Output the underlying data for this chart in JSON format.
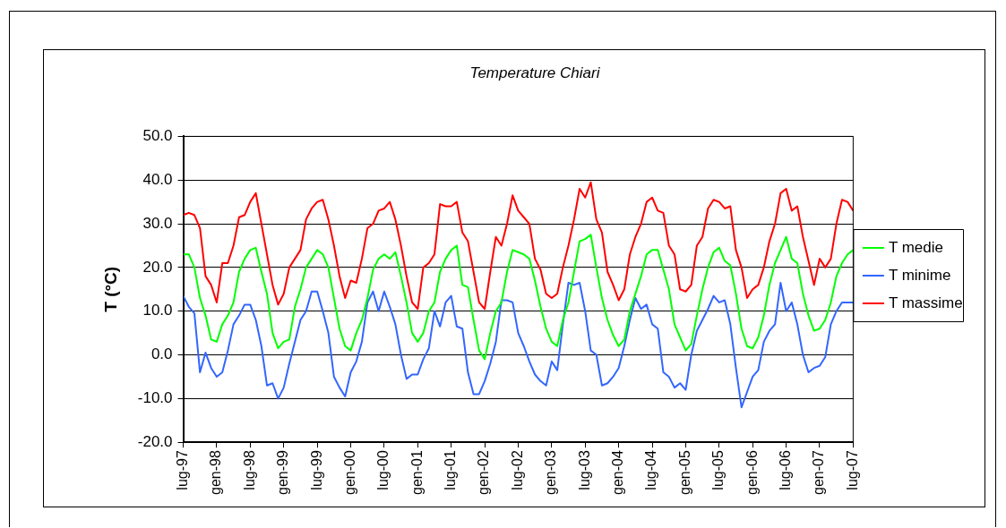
{
  "chart_data": {
    "type": "line",
    "title": "Temperature Chiari",
    "ylabel": "T (°C)",
    "categories": [
      "lug-97",
      null,
      null,
      null,
      null,
      null,
      "gen-98",
      null,
      null,
      null,
      null,
      null,
      "lug-98",
      null,
      null,
      null,
      null,
      null,
      "gen-99",
      null,
      null,
      null,
      null,
      null,
      "lug-99",
      null,
      null,
      null,
      null,
      null,
      "gen-00",
      null,
      null,
      null,
      null,
      null,
      "lug-00",
      null,
      null,
      null,
      null,
      null,
      "gen-01",
      null,
      null,
      null,
      null,
      null,
      "lug-01",
      null,
      null,
      null,
      null,
      null,
      "gen-02",
      null,
      null,
      null,
      null,
      null,
      "lug-02",
      null,
      null,
      null,
      null,
      null,
      "gen-03",
      null,
      null,
      null,
      null,
      null,
      "lug-03",
      null,
      null,
      null,
      null,
      null,
      "gen-04",
      null,
      null,
      null,
      null,
      null,
      "lug-04",
      null,
      null,
      null,
      null,
      null,
      "gen-05",
      null,
      null,
      null,
      null,
      null,
      "lug-05",
      null,
      null,
      null,
      null,
      null,
      "gen-06",
      null,
      null,
      null,
      null,
      null,
      "lug-06",
      null,
      null,
      null,
      null,
      null,
      "gen-07",
      null,
      null,
      null,
      null,
      null,
      "lug-07"
    ],
    "series": [
      {
        "name": "T medie",
        "color": "#00ff00",
        "values": [
          23,
          23,
          20,
          13,
          9,
          3.5,
          3,
          7,
          9,
          12,
          19,
          22,
          24,
          24.5,
          19,
          14,
          5,
          1.5,
          3,
          3.5,
          11,
          15,
          20,
          22,
          24,
          23,
          20,
          13,
          6,
          2,
          1,
          5,
          8,
          13,
          19.5,
          22,
          23,
          22,
          23.5,
          18,
          12,
          5,
          3,
          5,
          10,
          12,
          19,
          22,
          24,
          25,
          16,
          15.5,
          8,
          1,
          -1,
          5,
          10,
          12,
          19,
          24,
          23.5,
          23,
          22,
          17,
          11,
          6,
          3,
          2,
          8,
          12,
          19,
          26,
          26.5,
          27.5,
          20,
          13,
          8,
          4.5,
          2,
          3.5,
          10,
          14,
          18,
          23,
          24,
          24,
          19.5,
          15,
          7,
          4,
          1,
          2.5,
          9,
          15,
          20,
          23.5,
          24.5,
          21.5,
          20.5,
          14,
          6,
          2,
          1.5,
          4,
          9,
          16,
          21,
          24,
          27,
          22,
          21,
          14,
          9,
          5.5,
          6,
          8,
          12,
          18,
          21,
          23,
          24
        ]
      },
      {
        "name": "T minime",
        "color": "#3366ff",
        "values": [
          13.5,
          11,
          9.5,
          -4,
          0.5,
          -3,
          -5,
          -4,
          1,
          7,
          9,
          11.5,
          11.5,
          8,
          2,
          -7,
          -6.5,
          -10,
          -7.5,
          -2,
          3,
          8,
          10,
          14.5,
          14.5,
          10,
          5,
          -5,
          -7.5,
          -9.5,
          -4,
          -1.5,
          3,
          12,
          14.5,
          10,
          14.5,
          11,
          7,
          0,
          -5.5,
          -4.5,
          -4.5,
          -1,
          1.5,
          10,
          6.5,
          12,
          13.5,
          6.5,
          6,
          -4,
          -9,
          -9,
          -6,
          -2,
          3,
          12.5,
          12.5,
          12,
          5,
          2,
          -1.5,
          -4.5,
          -6,
          -7,
          -1.5,
          -3.5,
          7,
          16.5,
          16,
          16.5,
          10,
          1,
          0,
          -7,
          -6.5,
          -5,
          -3,
          2,
          8,
          13,
          10.5,
          11.5,
          7,
          6,
          -4,
          -5,
          -7.5,
          -6.5,
          -8,
          0,
          5.5,
          8,
          10.5,
          13.5,
          12,
          12.5,
          7,
          -3,
          -12,
          -8.5,
          -5,
          -3.5,
          3,
          5.5,
          7,
          16.5,
          10,
          12,
          7,
          0,
          -4,
          -3,
          -2.5,
          -0.5,
          7,
          10,
          12,
          12,
          12
        ]
      },
      {
        "name": "T massime",
        "color": "#ff0000",
        "values": [
          32,
          32.5,
          32,
          29,
          18,
          16,
          12,
          21,
          21,
          25,
          31.5,
          32,
          35,
          37,
          30,
          23,
          16,
          11.5,
          14,
          20,
          22,
          24,
          31,
          33.5,
          35,
          35.5,
          31,
          25,
          18,
          13,
          17,
          16.5,
          22,
          29,
          30,
          33,
          33.5,
          35,
          31,
          25,
          18,
          12,
          10.5,
          20,
          21,
          23,
          34.5,
          34,
          34,
          35,
          28,
          26,
          19,
          12,
          10.5,
          19,
          27,
          25,
          30,
          36.5,
          33,
          31.5,
          30,
          22,
          19.5,
          14,
          13,
          14,
          20,
          25,
          31,
          38,
          36,
          39.5,
          31,
          28,
          19,
          16,
          12.5,
          15,
          23,
          27,
          30,
          35,
          36,
          33,
          32.5,
          25,
          23,
          15,
          14.5,
          16,
          25,
          27,
          33.5,
          35.5,
          35,
          33.5,
          34,
          24,
          20,
          13,
          15,
          16,
          20,
          26,
          30,
          37,
          38,
          33,
          34,
          27,
          21.5,
          16,
          22,
          20,
          22,
          30,
          35.5,
          35,
          33
        ]
      }
    ],
    "ylim": [
      -20,
      50
    ],
    "yticks": [
      {
        "value": -20,
        "label": "-20.0"
      },
      {
        "value": -10,
        "label": "-10.0"
      },
      {
        "value": 0,
        "label": "0.0"
      },
      {
        "value": 10,
        "label": "10.0"
      },
      {
        "value": 20,
        "label": "20.0"
      },
      {
        "value": 30,
        "label": "30.0"
      },
      {
        "value": 40,
        "label": "40.0"
      },
      {
        "value": 50,
        "label": "50.0"
      }
    ],
    "grid": "y",
    "legend": "right",
    "marker": "none",
    "line_style": "solid"
  }
}
